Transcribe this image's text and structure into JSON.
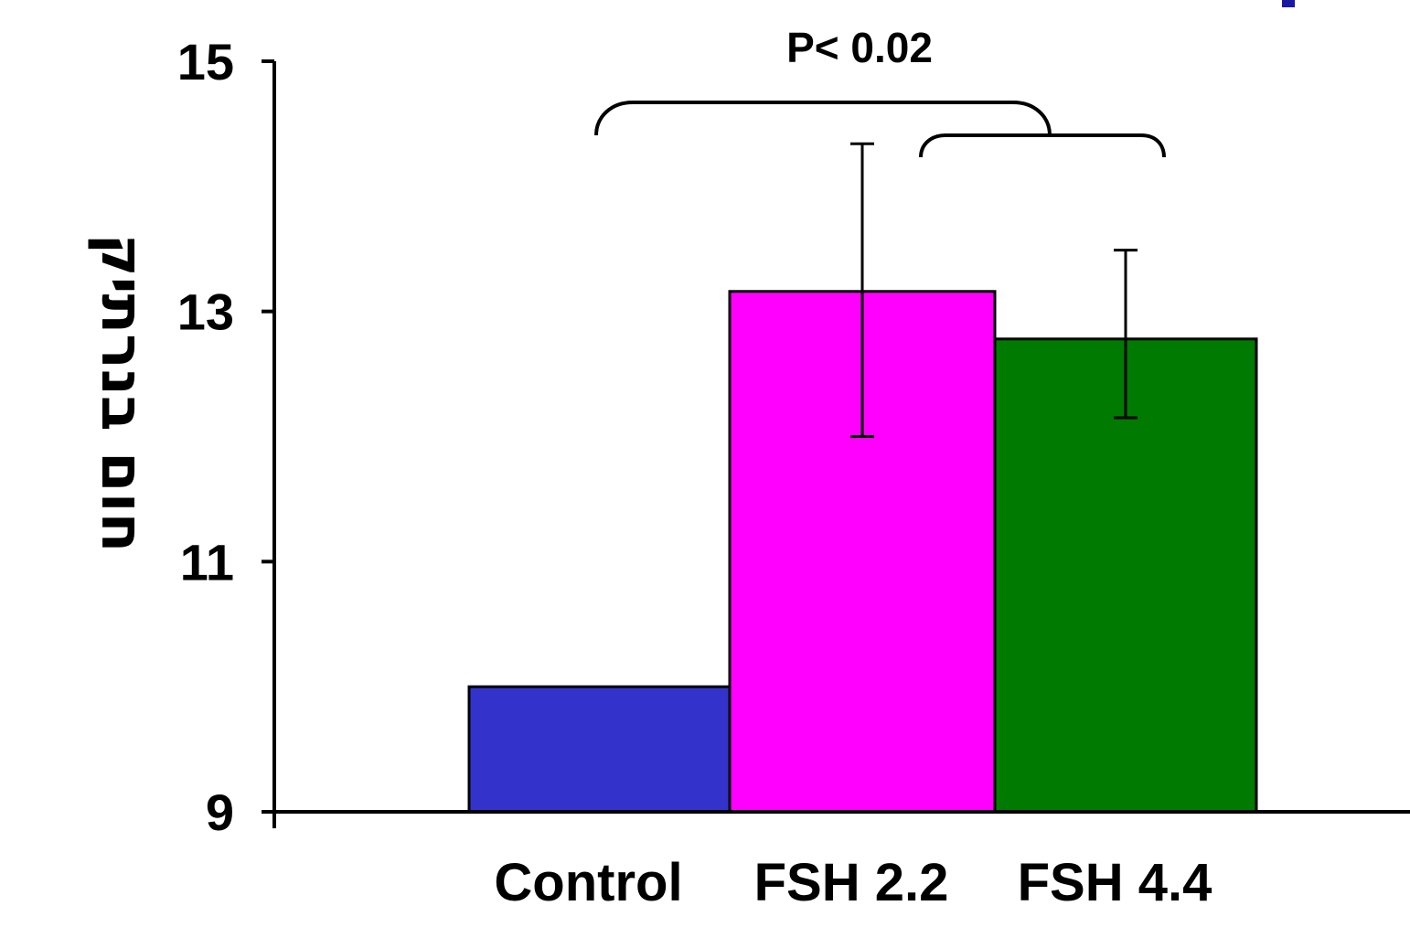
{
  "chart_data": {
    "type": "bar",
    "categories": [
      "Control",
      "FSH 2.2",
      "FSH 4.4"
    ],
    "values": [
      10.0,
      13.16,
      12.78
    ],
    "error_bars": [
      null,
      {
        "low": 12.0,
        "high": 14.34
      },
      {
        "low": 12.15,
        "high": 13.49
      }
    ],
    "colors": [
      "#3333cc",
      "#ff00ff",
      "#007a00"
    ],
    "ylabel": "חום בנרתיק",
    "ylim": [
      9,
      15
    ],
    "yticks": [
      9,
      11,
      13,
      15
    ],
    "annotation": "P< 0.02",
    "grid": false,
    "legend": "none"
  },
  "decor": {
    "corner_mark_color": "#1a1aa0"
  }
}
